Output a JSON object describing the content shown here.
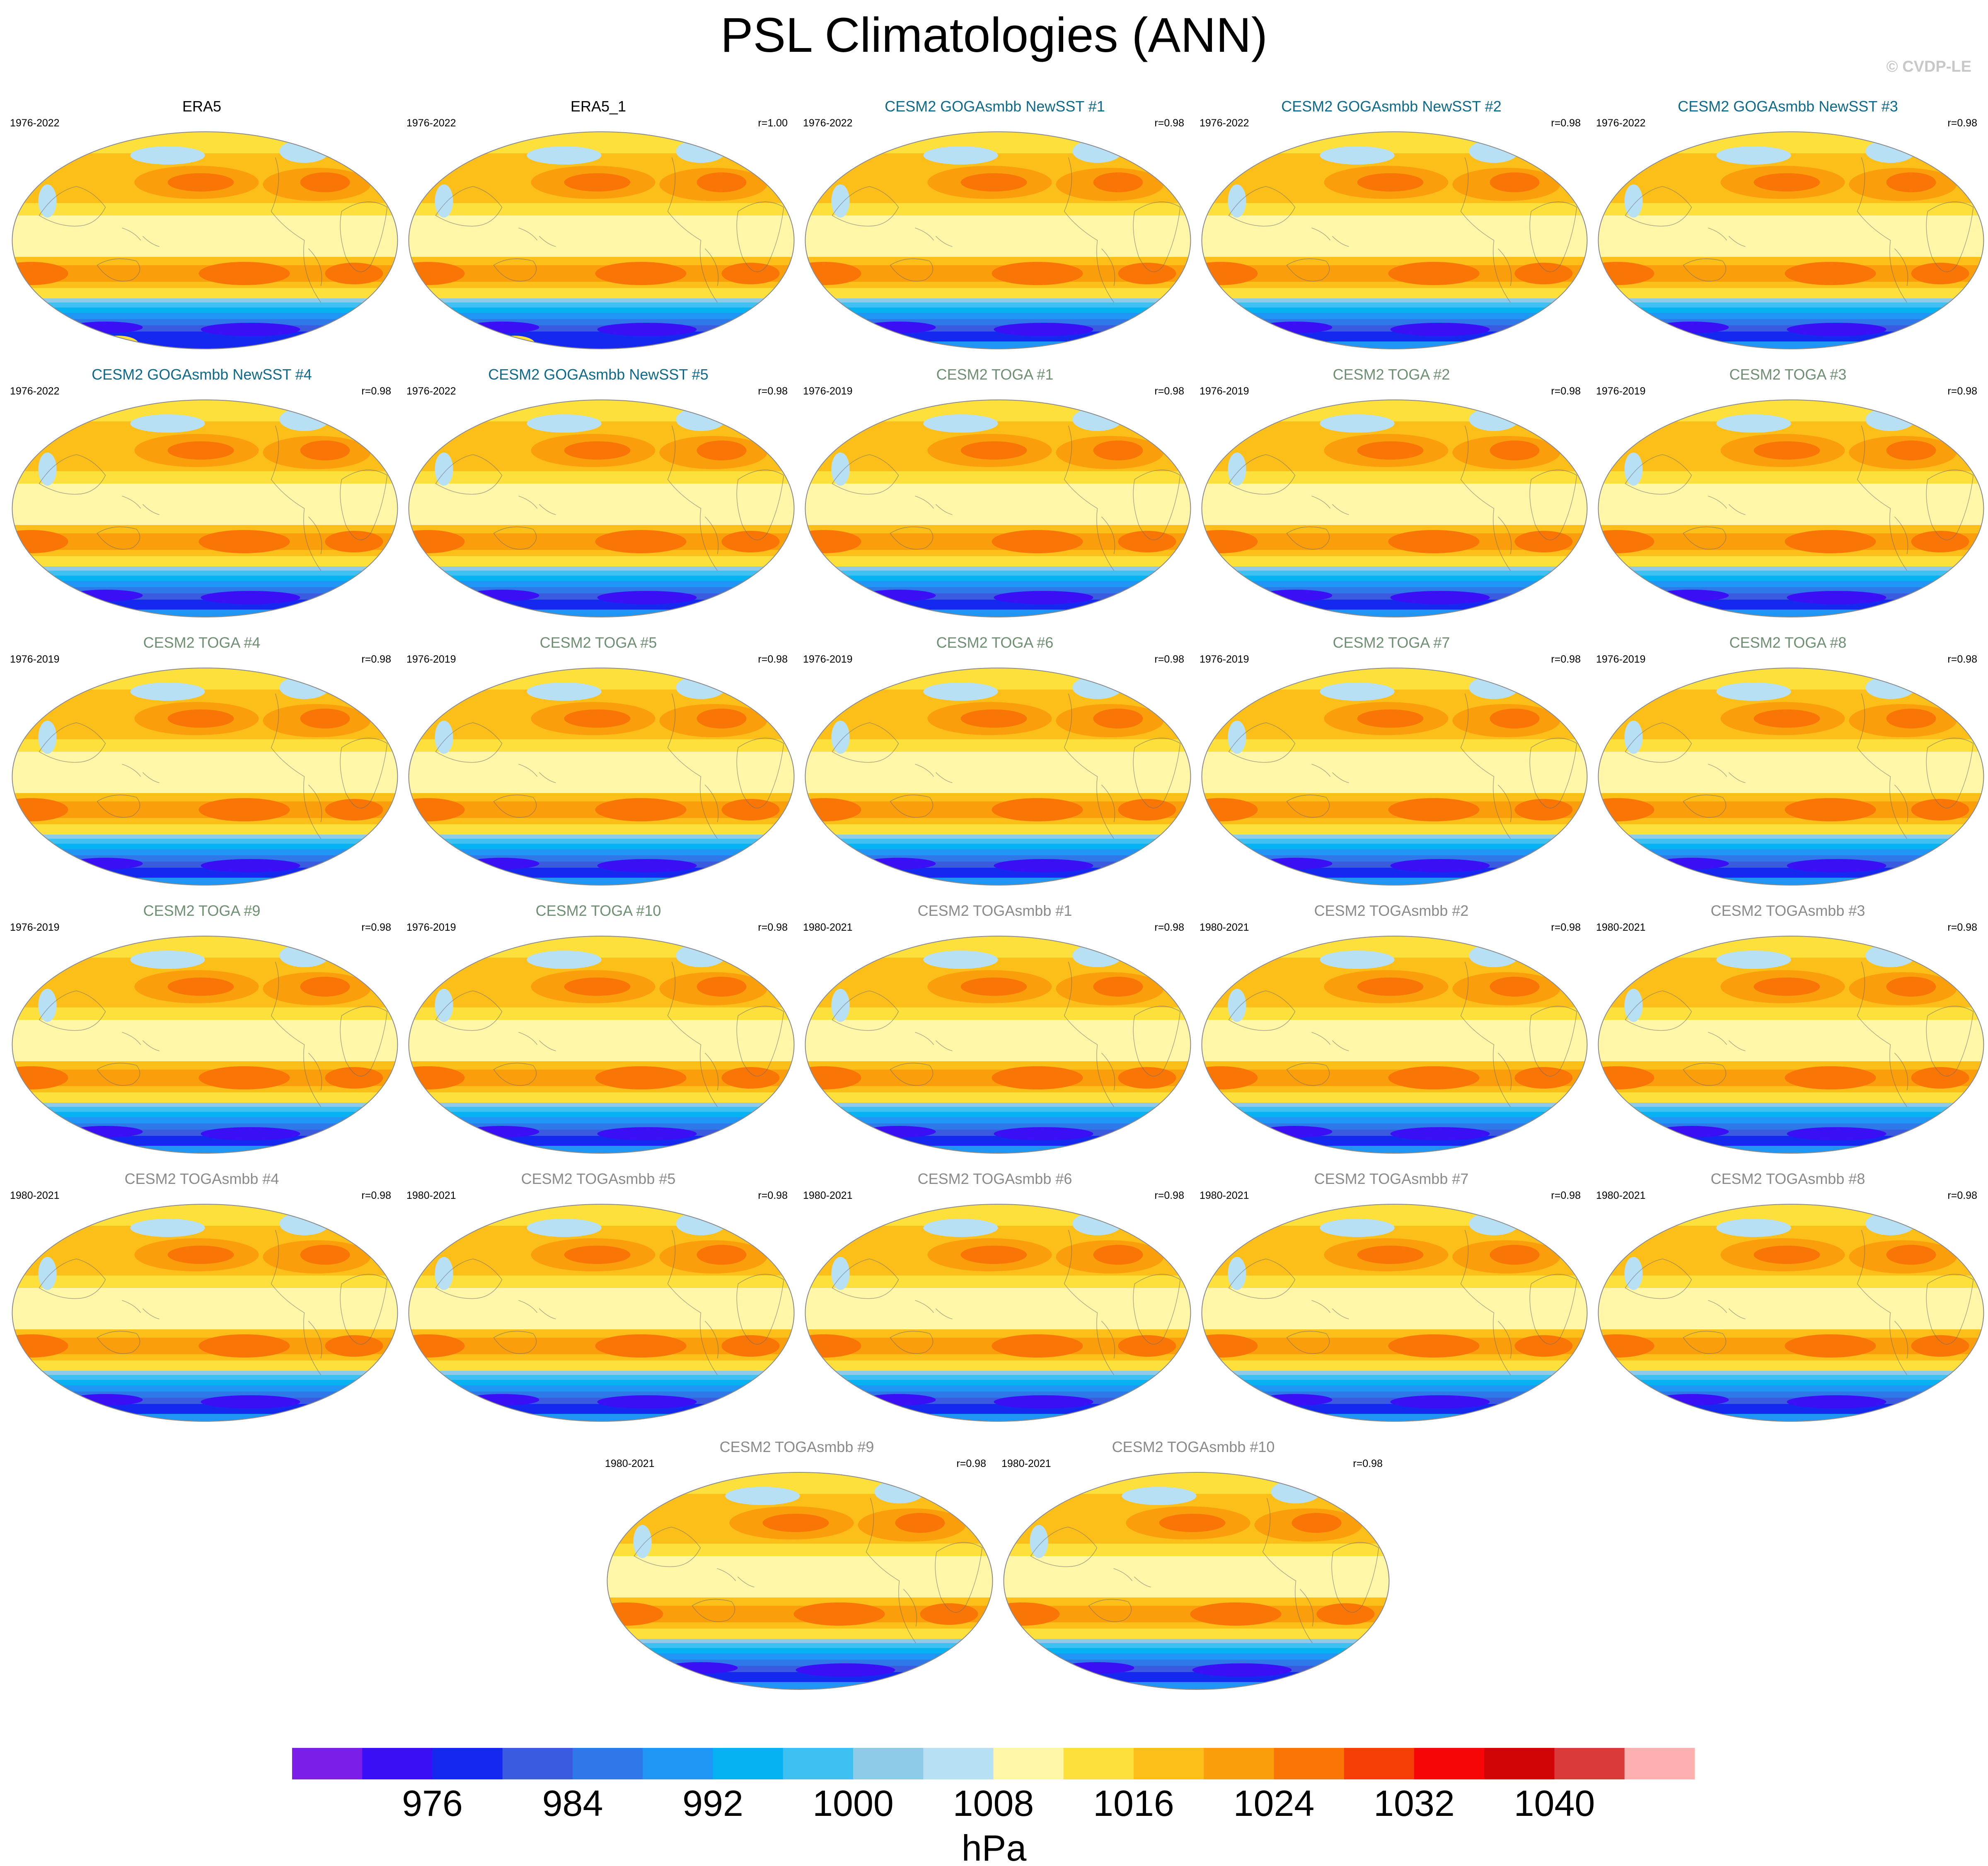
{
  "title": "PSL Climatologies (ANN)",
  "watermark": "© CVDP-LE",
  "chart_data": {
    "type": "contour-map-grid",
    "title": "PSL Climatologies (ANN)",
    "projection": "Robinson (Pacific-centered)",
    "variable": "PSL",
    "units": "hPa",
    "panels": [
      {
        "name": "ERA5",
        "period": "1976-2022",
        "corr": "",
        "kind": "obs",
        "name_color": "#000000"
      },
      {
        "name": "ERA5_1",
        "period": "1976-2022",
        "corr": "r=1.00",
        "kind": "obs",
        "name_color": "#000000"
      },
      {
        "name": "CESM2 GOGAsmbb NewSST #1",
        "period": "1976-2022",
        "corr": "r=0.98",
        "kind": "model",
        "name_color": "#0e6a8c"
      },
      {
        "name": "CESM2 GOGAsmbb NewSST #2",
        "period": "1976-2022",
        "corr": "r=0.98",
        "kind": "model",
        "name_color": "#0e6a8c"
      },
      {
        "name": "CESM2 GOGAsmbb NewSST #3",
        "period": "1976-2022",
        "corr": "r=0.98",
        "kind": "model",
        "name_color": "#0e6a8c"
      },
      {
        "name": "CESM2 GOGAsmbb NewSST #4",
        "period": "1976-2022",
        "corr": "r=0.98",
        "kind": "model",
        "name_color": "#0e6a8c"
      },
      {
        "name": "CESM2 GOGAsmbb NewSST #5",
        "period": "1976-2022",
        "corr": "r=0.98",
        "kind": "model",
        "name_color": "#0e6a8c"
      },
      {
        "name": "CESM2 TOGA #1",
        "period": "1976-2019",
        "corr": "r=0.98",
        "kind": "model",
        "name_color": "#6e8f72"
      },
      {
        "name": "CESM2 TOGA #2",
        "period": "1976-2019",
        "corr": "r=0.98",
        "kind": "model",
        "name_color": "#6e8f72"
      },
      {
        "name": "CESM2 TOGA #3",
        "period": "1976-2019",
        "corr": "r=0.98",
        "kind": "model",
        "name_color": "#6e8f72"
      },
      {
        "name": "CESM2 TOGA #4",
        "period": "1976-2019",
        "corr": "r=0.98",
        "kind": "model",
        "name_color": "#6e8f72"
      },
      {
        "name": "CESM2 TOGA #5",
        "period": "1976-2019",
        "corr": "r=0.98",
        "kind": "model",
        "name_color": "#6e8f72"
      },
      {
        "name": "CESM2 TOGA #6",
        "period": "1976-2019",
        "corr": "r=0.98",
        "kind": "model",
        "name_color": "#6e8f72"
      },
      {
        "name": "CESM2 TOGA #7",
        "period": "1976-2019",
        "corr": "r=0.98",
        "kind": "model",
        "name_color": "#6e8f72"
      },
      {
        "name": "CESM2 TOGA #8",
        "period": "1976-2019",
        "corr": "r=0.98",
        "kind": "model",
        "name_color": "#6e8f72"
      },
      {
        "name": "CESM2 TOGA #9",
        "period": "1976-2019",
        "corr": "r=0.98",
        "kind": "model",
        "name_color": "#6e8f72"
      },
      {
        "name": "CESM2 TOGA #10",
        "period": "1976-2019",
        "corr": "r=0.98",
        "kind": "model",
        "name_color": "#6e8f72"
      },
      {
        "name": "CESM2 TOGAsmbb #1",
        "period": "1980-2021",
        "corr": "r=0.98",
        "kind": "model",
        "name_color": "#8a8a8a"
      },
      {
        "name": "CESM2 TOGAsmbb #2",
        "period": "1980-2021",
        "corr": "r=0.98",
        "kind": "model",
        "name_color": "#8a8a8a"
      },
      {
        "name": "CESM2 TOGAsmbb #3",
        "period": "1980-2021",
        "corr": "r=0.98",
        "kind": "model",
        "name_color": "#8a8a8a"
      },
      {
        "name": "CESM2 TOGAsmbb #4",
        "period": "1980-2021",
        "corr": "r=0.98",
        "kind": "model",
        "name_color": "#8a8a8a"
      },
      {
        "name": "CESM2 TOGAsmbb #5",
        "period": "1980-2021",
        "corr": "r=0.98",
        "kind": "model",
        "name_color": "#8a8a8a"
      },
      {
        "name": "CESM2 TOGAsmbb #6",
        "period": "1980-2021",
        "corr": "r=0.98",
        "kind": "model",
        "name_color": "#8a8a8a"
      },
      {
        "name": "CESM2 TOGAsmbb #7",
        "period": "1980-2021",
        "corr": "r=0.98",
        "kind": "model",
        "name_color": "#8a8a8a"
      },
      {
        "name": "CESM2 TOGAsmbb #8",
        "period": "1980-2021",
        "corr": "r=0.98",
        "kind": "model",
        "name_color": "#8a8a8a"
      },
      {
        "name": "CESM2 TOGAsmbb #9",
        "period": "1980-2021",
        "corr": "r=0.98",
        "kind": "model",
        "name_color": "#8a8a8a"
      },
      {
        "name": "CESM2 TOGAsmbb #10",
        "period": "1980-2021",
        "corr": "r=0.98",
        "kind": "model",
        "name_color": "#8a8a8a"
      }
    ],
    "colorbar": {
      "label": "hPa",
      "levels": [
        972,
        976,
        980,
        984,
        988,
        992,
        996,
        1000,
        1004,
        1008,
        1012,
        1016,
        1020,
        1024,
        1028,
        1032,
        1036,
        1040,
        1044
      ],
      "tick_labels": [
        "976",
        "984",
        "992",
        "1000",
        "1008",
        "1016",
        "1024",
        "1032",
        "1040"
      ],
      "colors": [
        "#7b1fe8",
        "#3a0ff5",
        "#1428f0",
        "#3a5ae0",
        "#2e78ea",
        "#1f96f5",
        "#06b2f2",
        "#3ec0f3",
        "#8ecbe8",
        "#b8e0f4",
        "#fff6a8",
        "#fde03c",
        "#fcbf1a",
        "#fb9e0c",
        "#f97606",
        "#f73e06",
        "#f60606",
        "#d00404",
        "#da3a3a",
        "#fcb0b0"
      ]
    }
  }
}
